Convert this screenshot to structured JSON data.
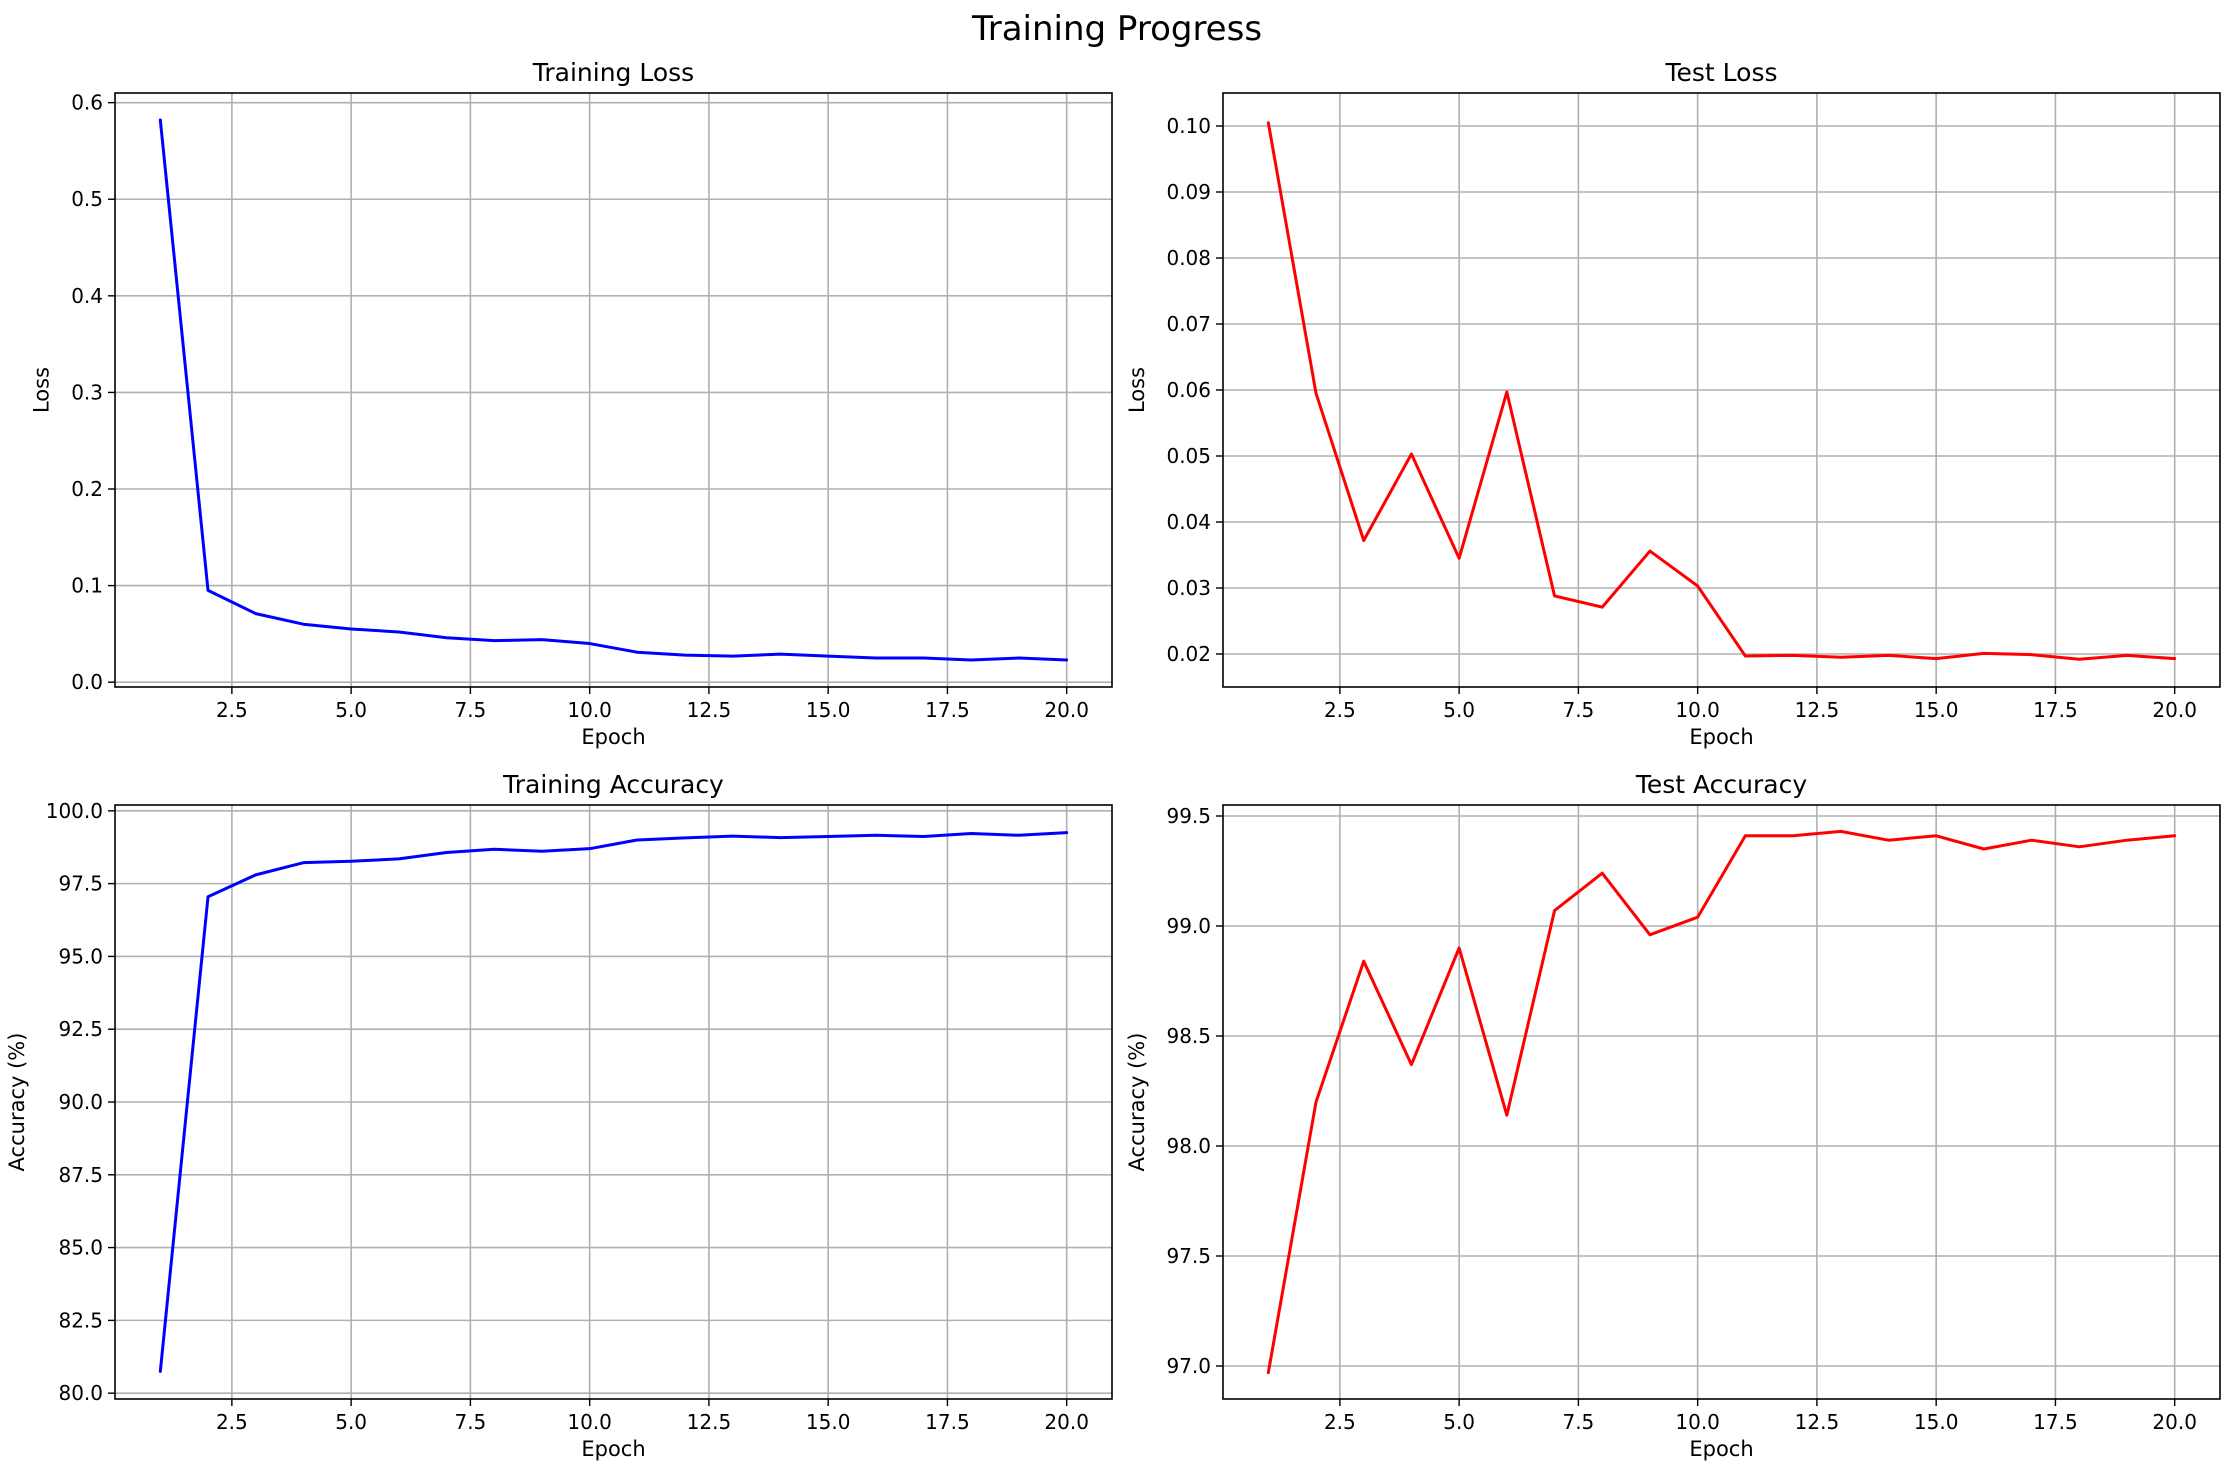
{
  "figure": {
    "title": "Training Progress"
  },
  "colors": {
    "train": "#0000ff",
    "test": "#ff0000",
    "grid": "#b0b0b0"
  },
  "chart_data": [
    {
      "id": "training-loss",
      "type": "line",
      "title": "Training Loss",
      "xlabel": "Epoch",
      "ylabel": "Loss",
      "color": "#0000ff",
      "grid": true,
      "xlim": [
        0.05,
        20.95
      ],
      "ylim": [
        -0.005,
        0.61
      ],
      "xticks": [
        2.5,
        5.0,
        7.5,
        10.0,
        12.5,
        15.0,
        17.5,
        20.0
      ],
      "xtick_labels": [
        "2.5",
        "5.0",
        "7.5",
        "10.0",
        "12.5",
        "15.0",
        "17.5",
        "20.0"
      ],
      "yticks": [
        0.0,
        0.1,
        0.2,
        0.3,
        0.4,
        0.5,
        0.6
      ],
      "ytick_labels": [
        "0.0",
        "0.1",
        "0.2",
        "0.3",
        "0.4",
        "0.5",
        "0.6"
      ],
      "x": [
        1,
        2,
        3,
        4,
        5,
        6,
        7,
        8,
        9,
        10,
        11,
        12,
        13,
        14,
        15,
        16,
        17,
        18,
        19,
        20
      ],
      "y": [
        0.582,
        0.095,
        0.071,
        0.06,
        0.055,
        0.052,
        0.046,
        0.043,
        0.044,
        0.04,
        0.031,
        0.028,
        0.027,
        0.029,
        0.027,
        0.025,
        0.025,
        0.023,
        0.025,
        0.023
      ]
    },
    {
      "id": "test-loss",
      "type": "line",
      "title": "Test Loss",
      "xlabel": "Epoch",
      "ylabel": "Loss",
      "color": "#ff0000",
      "grid": true,
      "xlim": [
        0.05,
        20.95
      ],
      "ylim": [
        0.015,
        0.105
      ],
      "xticks": [
        2.5,
        5.0,
        7.5,
        10.0,
        12.5,
        15.0,
        17.5,
        20.0
      ],
      "xtick_labels": [
        "2.5",
        "5.0",
        "7.5",
        "10.0",
        "12.5",
        "15.0",
        "17.5",
        "20.0"
      ],
      "yticks": [
        0.02,
        0.03,
        0.04,
        0.05,
        0.06,
        0.07,
        0.08,
        0.09,
        0.1
      ],
      "ytick_labels": [
        "0.02",
        "0.03",
        "0.04",
        "0.05",
        "0.06",
        "0.07",
        "0.08",
        "0.09",
        "0.10"
      ],
      "x": [
        1,
        2,
        3,
        4,
        5,
        6,
        7,
        8,
        9,
        10,
        11,
        12,
        13,
        14,
        15,
        16,
        17,
        18,
        19,
        20
      ],
      "y": [
        0.1005,
        0.0595,
        0.0372,
        0.0503,
        0.0345,
        0.0597,
        0.0288,
        0.0271,
        0.0356,
        0.0303,
        0.0197,
        0.0198,
        0.0195,
        0.0198,
        0.0193,
        0.0201,
        0.0199,
        0.0192,
        0.0198,
        0.0193
      ]
    },
    {
      "id": "training-accuracy",
      "type": "line",
      "title": "Training Accuracy",
      "xlabel": "Epoch",
      "ylabel": "Accuracy (%)",
      "color": "#0000ff",
      "grid": true,
      "xlim": [
        0.05,
        20.95
      ],
      "ylim": [
        79.8,
        100.2
      ],
      "xticks": [
        2.5,
        5.0,
        7.5,
        10.0,
        12.5,
        15.0,
        17.5,
        20.0
      ],
      "xtick_labels": [
        "2.5",
        "5.0",
        "7.5",
        "10.0",
        "12.5",
        "15.0",
        "17.5",
        "20.0"
      ],
      "yticks": [
        80.0,
        82.5,
        85.0,
        87.5,
        90.0,
        92.5,
        95.0,
        97.5,
        100.0
      ],
      "ytick_labels": [
        "80.0",
        "82.5",
        "85.0",
        "87.5",
        "90.0",
        "92.5",
        "95.0",
        "97.5",
        "100.0"
      ],
      "x": [
        1,
        2,
        3,
        4,
        5,
        6,
        7,
        8,
        9,
        10,
        11,
        12,
        13,
        14,
        15,
        16,
        17,
        18,
        19,
        20
      ],
      "y": [
        80.75,
        97.05,
        97.8,
        98.22,
        98.27,
        98.35,
        98.57,
        98.68,
        98.61,
        98.7,
        99.0,
        99.07,
        99.13,
        99.08,
        99.12,
        99.16,
        99.12,
        99.22,
        99.16,
        99.25
      ]
    },
    {
      "id": "test-accuracy",
      "type": "line",
      "title": "Test Accuracy",
      "xlabel": "Epoch",
      "ylabel": "Accuracy (%)",
      "color": "#ff0000",
      "grid": true,
      "xlim": [
        0.05,
        20.95
      ],
      "ylim": [
        96.85,
        99.55
      ],
      "xticks": [
        2.5,
        5.0,
        7.5,
        10.0,
        12.5,
        15.0,
        17.5,
        20.0
      ],
      "xtick_labels": [
        "2.5",
        "5.0",
        "7.5",
        "10.0",
        "12.5",
        "15.0",
        "17.5",
        "20.0"
      ],
      "yticks": [
        97.0,
        97.5,
        98.0,
        98.5,
        99.0,
        99.5
      ],
      "ytick_labels": [
        "97.0",
        "97.5",
        "98.0",
        "98.5",
        "99.0",
        "99.5"
      ],
      "x": [
        1,
        2,
        3,
        4,
        5,
        6,
        7,
        8,
        9,
        10,
        11,
        12,
        13,
        14,
        15,
        16,
        17,
        18,
        19,
        20
      ],
      "y": [
        96.97,
        98.2,
        98.84,
        98.37,
        98.9,
        98.14,
        99.07,
        99.24,
        98.96,
        99.04,
        99.41,
        99.41,
        99.43,
        99.39,
        99.41,
        99.35,
        99.39,
        99.36,
        99.39,
        99.41
      ]
    }
  ]
}
